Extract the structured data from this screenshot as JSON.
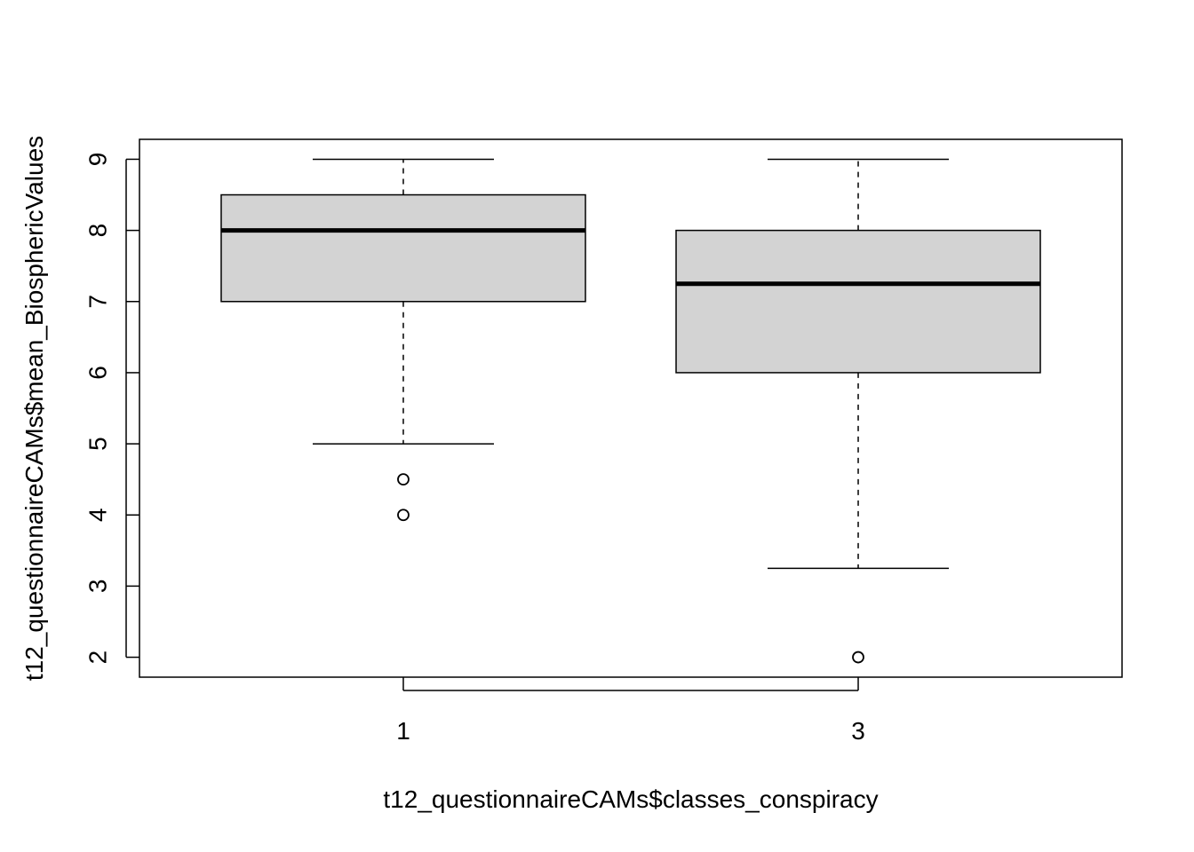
{
  "chart_data": {
    "type": "boxplot",
    "xlabel": "t12_questionnaireCAMs$classes_conspiracy",
    "ylabel": "t12_questionnaireCAMs$mean_BiosphericValues",
    "categories": [
      "1",
      "3"
    ],
    "ylim": [
      1.72,
      9.28
    ],
    "yticks": [
      2,
      3,
      4,
      5,
      6,
      7,
      8,
      9
    ],
    "grid": false,
    "box_fill": "#d3d3d3",
    "boxes": [
      {
        "category": "1",
        "whisker_low": 5,
        "q1": 7,
        "median": 8,
        "q3": 8.5,
        "whisker_high": 9,
        "outliers": [
          4.5,
          4
        ]
      },
      {
        "category": "3",
        "whisker_low": 3.25,
        "q1": 6,
        "median": 7.25,
        "q3": 8,
        "whisker_high": 9,
        "outliers": [
          2
        ]
      }
    ]
  }
}
